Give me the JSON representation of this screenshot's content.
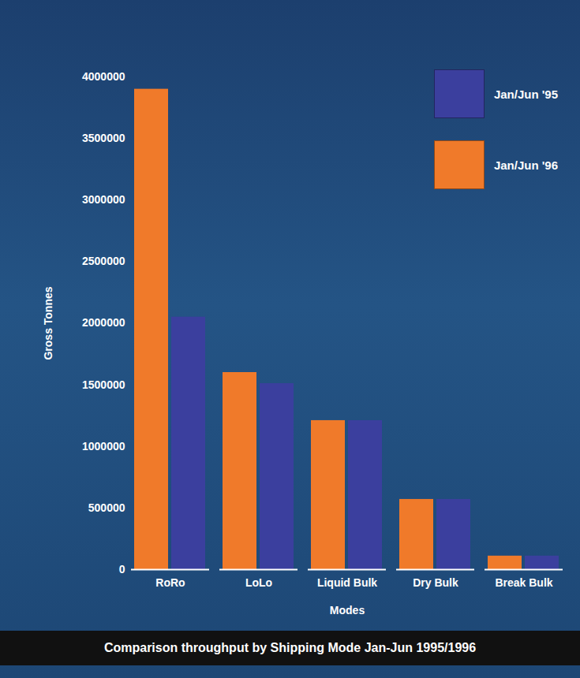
{
  "chart_data": {
    "type": "bar",
    "title": "Comparison throughput by Shipping Mode Jan-Jun 1995/1996",
    "x_label": "Modes",
    "y_label": "Gross Tonnes",
    "categories": [
      "RoRo",
      "LoLo",
      "Liquid Bulk",
      "Dry Bulk",
      "Break Bulk"
    ],
    "series": [
      {
        "name": "Jan/Jun '95",
        "color": "#3b3f9e",
        "values": [
          2050000,
          1510000,
          1210000,
          570000,
          110000
        ]
      },
      {
        "name": "Jan/Jun '96",
        "color": "#f07a2a",
        "values": [
          3900000,
          1600000,
          1210000,
          570000,
          110000
        ]
      }
    ],
    "ylim": [
      0,
      4000000
    ],
    "yticks": [
      0,
      500000,
      1000000,
      1500000,
      2000000,
      2500000,
      3000000,
      3500000,
      4000000
    ],
    "legend": "top-right",
    "grid": false
  }
}
